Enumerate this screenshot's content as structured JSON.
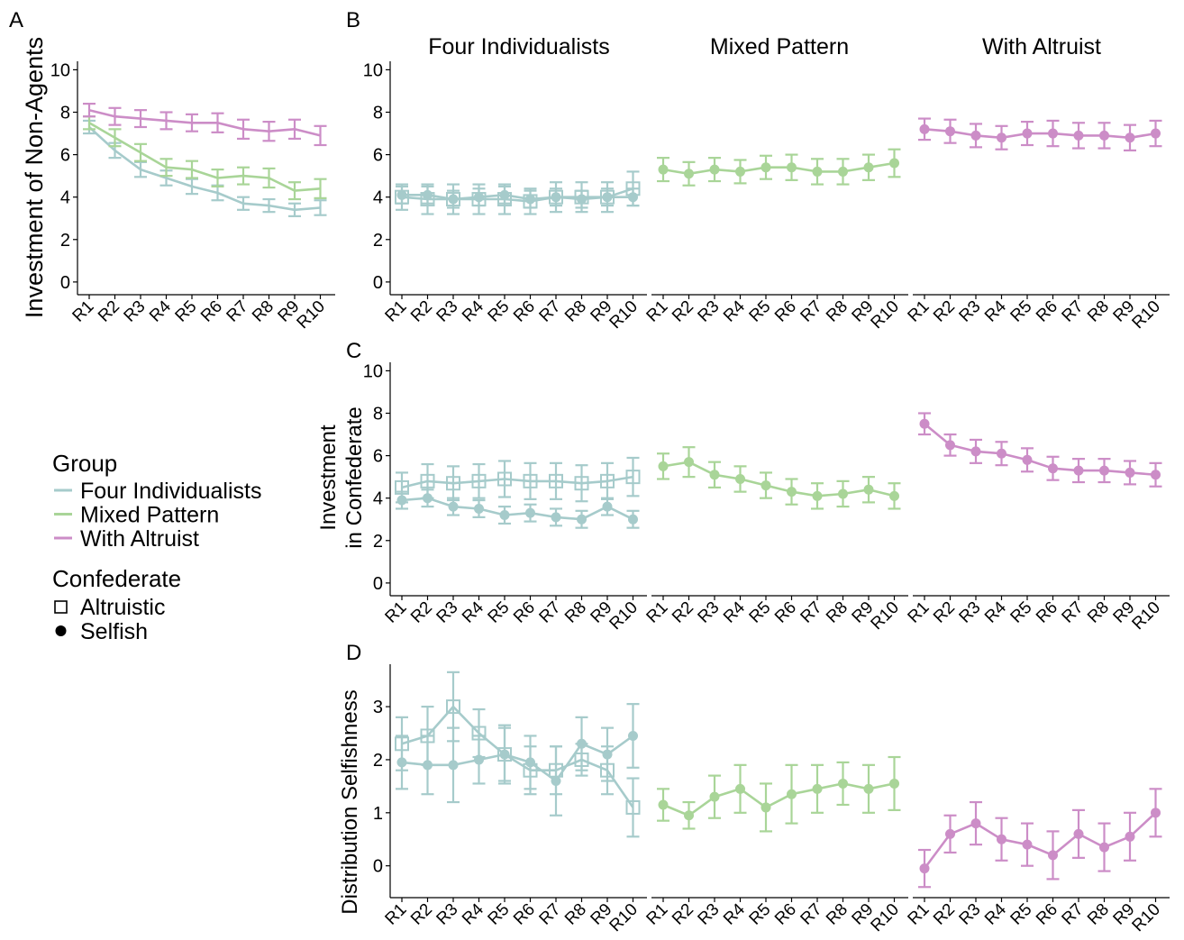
{
  "colors": {
    "Four Individualists": "#a6cbcb",
    "Mixed Pattern": "#a9d598",
    "With Altruist": "#cc8dc7"
  },
  "legend": {
    "group_title": "Group",
    "groups": [
      "Four Individualists",
      "Mixed Pattern",
      "With Altruist"
    ],
    "confederate_title": "Confederate",
    "confederates": [
      "Altruistic",
      "Selfish"
    ]
  },
  "panel_letters": [
    "A",
    "B",
    "C",
    "D"
  ],
  "facet_titles": [
    "Four Individualists",
    "Mixed Pattern",
    "With Altruist"
  ],
  "ylabels": {
    "A": [
      "Investment of Non-Agents"
    ],
    "C": [
      "Investment",
      "in Confederate"
    ],
    "D": [
      "Distribution Selfishness"
    ]
  },
  "chart_data": [
    {
      "panel": "A",
      "type": "line",
      "ylabel": "Investment of Non-Agents",
      "categories": [
        "R1",
        "R2",
        "R3",
        "R4",
        "R5",
        "R6",
        "R7",
        "R8",
        "R9",
        "R10"
      ],
      "ylim": [
        0,
        10.4
      ],
      "yticks": [
        0,
        2,
        4,
        6,
        8,
        10
      ],
      "grid": false,
      "series": [
        {
          "group": "Four Individualists",
          "marker": "none",
          "values": [
            7.3,
            6.2,
            5.3,
            4.9,
            4.5,
            4.2,
            3.7,
            3.6,
            3.4,
            3.5
          ],
          "err": [
            0.3,
            0.35,
            0.35,
            0.35,
            0.35,
            0.35,
            0.3,
            0.3,
            0.3,
            0.35
          ]
        },
        {
          "group": "Mixed Pattern",
          "marker": "none",
          "values": [
            7.5,
            6.8,
            6.1,
            5.4,
            5.3,
            4.9,
            5.0,
            4.9,
            4.3,
            4.4
          ],
          "err": [
            0.3,
            0.4,
            0.4,
            0.4,
            0.4,
            0.4,
            0.4,
            0.45,
            0.4,
            0.45
          ]
        },
        {
          "group": "With Altruist",
          "marker": "none",
          "values": [
            8.1,
            7.8,
            7.7,
            7.6,
            7.5,
            7.5,
            7.2,
            7.1,
            7.2,
            6.9
          ],
          "err": [
            0.3,
            0.4,
            0.4,
            0.4,
            0.4,
            0.45,
            0.45,
            0.45,
            0.45,
            0.45
          ]
        }
      ]
    },
    {
      "panel": "B",
      "type": "line",
      "categories": [
        "R1",
        "R2",
        "R3",
        "R4",
        "R5",
        "R6",
        "R7",
        "R8",
        "R9",
        "R10"
      ],
      "ylim": [
        0,
        10.4
      ],
      "yticks": [
        0,
        2,
        4,
        6,
        8,
        10
      ],
      "grid": false,
      "facets": [
        {
          "title": "Four Individualists",
          "series": [
            {
              "group": "Four Individualists",
              "marker": "square",
              "values": [
                4.0,
                3.9,
                3.9,
                3.9,
                3.9,
                3.8,
                4.0,
                4.0,
                4.0,
                4.4
              ],
              "err": [
                0.6,
                0.7,
                0.7,
                0.7,
                0.7,
                0.6,
                0.7,
                0.7,
                0.7,
                0.8
              ]
            },
            {
              "group": "Four Individualists",
              "marker": "circle",
              "values": [
                4.1,
                4.1,
                3.9,
                4.0,
                4.1,
                3.9,
                4.0,
                3.9,
                4.0,
                4.0
              ],
              "err": [
                0.4,
                0.4,
                0.4,
                0.4,
                0.4,
                0.4,
                0.4,
                0.4,
                0.4,
                0.4
              ]
            }
          ]
        },
        {
          "title": "Mixed Pattern",
          "series": [
            {
              "group": "Mixed Pattern",
              "marker": "circle",
              "values": [
                5.3,
                5.1,
                5.3,
                5.2,
                5.4,
                5.4,
                5.2,
                5.2,
                5.4,
                5.6
              ],
              "err": [
                0.55,
                0.55,
                0.55,
                0.55,
                0.55,
                0.6,
                0.6,
                0.6,
                0.6,
                0.65
              ]
            }
          ]
        },
        {
          "title": "With Altruist",
          "series": [
            {
              "group": "With Altruist",
              "marker": "circle",
              "values": [
                7.2,
                7.1,
                6.9,
                6.8,
                7.0,
                7.0,
                6.9,
                6.9,
                6.8,
                7.0
              ],
              "err": [
                0.5,
                0.55,
                0.55,
                0.55,
                0.55,
                0.6,
                0.6,
                0.6,
                0.6,
                0.6
              ]
            }
          ]
        }
      ]
    },
    {
      "panel": "C",
      "type": "line",
      "ylabel": "Investment in Confederate",
      "categories": [
        "R1",
        "R2",
        "R3",
        "R4",
        "R5",
        "R6",
        "R7",
        "R8",
        "R9",
        "R10"
      ],
      "ylim": [
        0,
        10.4
      ],
      "yticks": [
        0,
        2,
        4,
        6,
        8,
        10
      ],
      "grid": false,
      "facets": [
        {
          "title": "Four Individualists",
          "series": [
            {
              "group": "Four Individualists",
              "marker": "square",
              "values": [
                4.5,
                4.8,
                4.7,
                4.8,
                4.9,
                4.8,
                4.8,
                4.7,
                4.8,
                5.0
              ],
              "err": [
                0.7,
                0.8,
                0.8,
                0.8,
                0.85,
                0.85,
                0.85,
                0.85,
                0.85,
                0.9
              ]
            },
            {
              "group": "Four Individualists",
              "marker": "circle",
              "values": [
                3.9,
                4.0,
                3.6,
                3.5,
                3.2,
                3.3,
                3.1,
                3.0,
                3.6,
                3.0
              ],
              "err": [
                0.4,
                0.4,
                0.4,
                0.4,
                0.4,
                0.4,
                0.4,
                0.4,
                0.4,
                0.4
              ]
            }
          ]
        },
        {
          "title": "Mixed Pattern",
          "series": [
            {
              "group": "Mixed Pattern",
              "marker": "circle",
              "values": [
                5.5,
                5.7,
                5.1,
                4.9,
                4.6,
                4.3,
                4.1,
                4.2,
                4.4,
                4.1
              ],
              "err": [
                0.6,
                0.7,
                0.6,
                0.6,
                0.6,
                0.6,
                0.6,
                0.6,
                0.6,
                0.6
              ]
            }
          ]
        },
        {
          "title": "With Altruist",
          "series": [
            {
              "group": "With Altruist",
              "marker": "circle",
              "values": [
                7.5,
                6.5,
                6.2,
                6.1,
                5.8,
                5.4,
                5.3,
                5.3,
                5.2,
                5.1
              ],
              "err": [
                0.5,
                0.5,
                0.55,
                0.55,
                0.55,
                0.55,
                0.55,
                0.55,
                0.55,
                0.55
              ]
            }
          ]
        }
      ]
    },
    {
      "panel": "D",
      "type": "line",
      "ylabel": "Distribution Selfishness",
      "categories": [
        "R1",
        "R2",
        "R3",
        "R4",
        "R5",
        "R6",
        "R7",
        "R8",
        "R9",
        "R10"
      ],
      "ylim": [
        -0.6,
        3.8
      ],
      "yticks": [
        0,
        1,
        2,
        3
      ],
      "grid": false,
      "facets": [
        {
          "title": "Four Individualists",
          "series": [
            {
              "group": "Four Individualists",
              "marker": "square",
              "values": [
                2.3,
                2.45,
                3.0,
                2.5,
                2.1,
                1.8,
                1.8,
                2.0,
                1.8,
                1.1
              ],
              "err": [
                0.5,
                0.55,
                0.65,
                0.45,
                0.5,
                0.45,
                0.45,
                0.3,
                0.45,
                0.55
              ]
            },
            {
              "group": "Four Individualists",
              "marker": "circle",
              "values": [
                1.95,
                1.9,
                1.9,
                2.0,
                2.1,
                1.95,
                1.6,
                2.3,
                2.1,
                2.45
              ],
              "err": [
                0.5,
                0.55,
                0.7,
                0.45,
                0.55,
                0.5,
                0.65,
                0.5,
                0.5,
                0.6
              ]
            }
          ]
        },
        {
          "title": "Mixed Pattern",
          "series": [
            {
              "group": "Mixed Pattern",
              "marker": "circle",
              "values": [
                1.15,
                0.95,
                1.3,
                1.45,
                1.1,
                1.35,
                1.45,
                1.55,
                1.45,
                1.55
              ],
              "err": [
                0.3,
                0.25,
                0.4,
                0.45,
                0.45,
                0.55,
                0.45,
                0.4,
                0.45,
                0.5
              ]
            }
          ]
        },
        {
          "title": "With Altruist",
          "series": [
            {
              "group": "With Altruist",
              "marker": "circle",
              "values": [
                -0.05,
                0.6,
                0.8,
                0.5,
                0.4,
                0.2,
                0.6,
                0.35,
                0.55,
                1.0
              ],
              "err": [
                0.35,
                0.35,
                0.4,
                0.4,
                0.4,
                0.45,
                0.45,
                0.45,
                0.45,
                0.45
              ]
            }
          ]
        }
      ]
    }
  ]
}
